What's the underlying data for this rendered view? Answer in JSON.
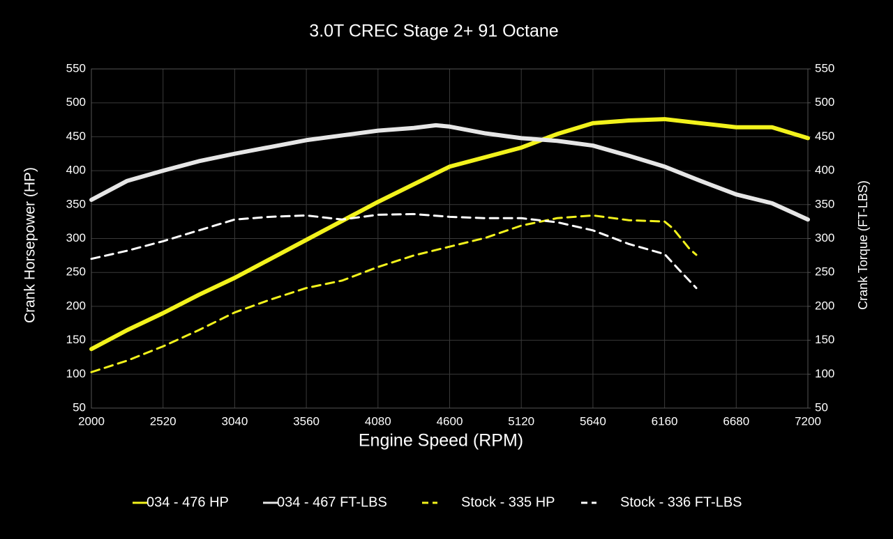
{
  "chart_data": {
    "type": "line",
    "title": "3.0T CREC Stage 2+ 91 Octane",
    "x_label": "Engine Speed (RPM)",
    "y_label": "Crank Horsepower (HP)",
    "y2_label": "Crank Torque (FT-LBS)",
    "xlim": [
      2000,
      7200
    ],
    "xticks": [
      2000,
      2520,
      3040,
      3560,
      4080,
      4600,
      5120,
      5640,
      6160,
      6680,
      7200
    ],
    "ylim": [
      50,
      550
    ],
    "yticks": [
      50,
      100,
      150,
      200,
      250,
      300,
      350,
      400,
      450,
      500,
      550
    ],
    "y2lim": [
      50,
      550
    ],
    "y2ticks": [
      50,
      100,
      150,
      200,
      250,
      300,
      350,
      400,
      450,
      500,
      550
    ],
    "grid": true,
    "legend": "bottom",
    "series": [
      {
        "name": "034 - 476 HP",
        "color": "#f2f21c",
        "dashed": false,
        "x": [
          2000,
          2260,
          2520,
          2780,
          3040,
          3300,
          3560,
          3820,
          4080,
          4340,
          4600,
          4860,
          5120,
          5380,
          5640,
          5900,
          6160,
          6420,
          6680,
          6940,
          7200
        ],
        "values": [
          137,
          165,
          190,
          217,
          242,
          270,
          298,
          326,
          354,
          380,
          406,
          420,
          434,
          454,
          470,
          474,
          476,
          470,
          464,
          464,
          448
        ]
      },
      {
        "name": "034 - 467 FT-LBS",
        "color": "#e6e6e6",
        "dashed": false,
        "axis": "y2",
        "x": [
          2000,
          2260,
          2520,
          2780,
          3040,
          3300,
          3560,
          3820,
          4080,
          4340,
          4500,
          4600,
          4860,
          5120,
          5380,
          5640,
          5900,
          6160,
          6420,
          6680,
          6940,
          7200
        ],
        "values": [
          357,
          385,
          400,
          414,
          425,
          435,
          445,
          452,
          459,
          463,
          467,
          465,
          455,
          448,
          444,
          437,
          422,
          406,
          385,
          365,
          352,
          328
        ]
      },
      {
        "name": "Stock - 335 HP",
        "color": "#f2f21c",
        "dashed": true,
        "x": [
          2000,
          2260,
          2520,
          2780,
          3040,
          3300,
          3560,
          3820,
          4080,
          4340,
          4600,
          4860,
          5120,
          5380,
          5640,
          5900,
          6160,
          6220,
          6340,
          6390
        ],
        "values": [
          103,
          120,
          141,
          165,
          191,
          210,
          227,
          238,
          258,
          275,
          288,
          301,
          319,
          330,
          334,
          327,
          325,
          315,
          285,
          276
        ]
      },
      {
        "name": "Stock - 336 FT-LBS",
        "color": "#ffffff",
        "dashed": true,
        "axis": "y2",
        "x": [
          2000,
          2260,
          2520,
          2780,
          3040,
          3300,
          3560,
          3820,
          4080,
          4340,
          4600,
          4860,
          5120,
          5380,
          5640,
          5900,
          6160,
          6260,
          6390
        ],
        "values": [
          270,
          282,
          296,
          312,
          328,
          332,
          334,
          328,
          335,
          336,
          332,
          330,
          330,
          324,
          312,
          292,
          277,
          255,
          227
        ]
      }
    ]
  }
}
